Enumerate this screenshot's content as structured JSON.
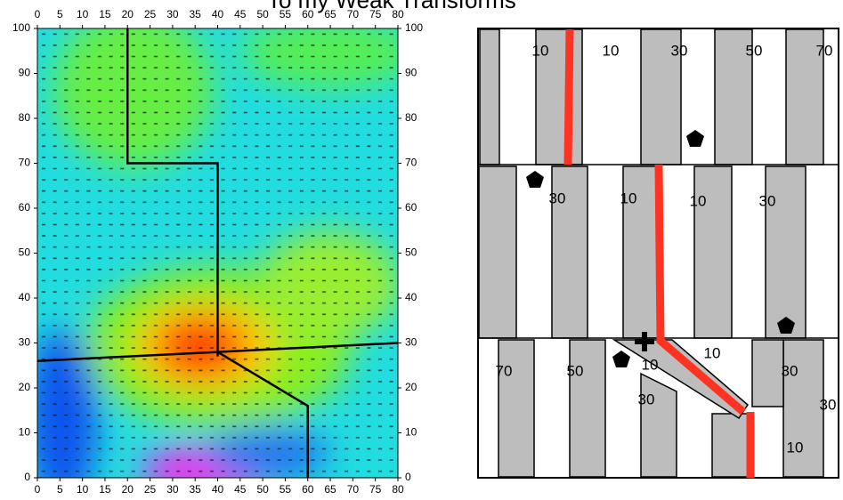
{
  "chart_data": {
    "type": "field",
    "title": "To my Weak Transforms",
    "xlim": [
      0,
      80
    ],
    "ylim": [
      0,
      100
    ],
    "xticks": [
      0,
      5,
      10,
      15,
      20,
      25,
      30,
      35,
      40,
      45,
      50,
      55,
      60,
      65,
      70,
      75,
      80
    ],
    "yticks": [
      0,
      10,
      20,
      30,
      40,
      50,
      60,
      70,
      80,
      90,
      100
    ],
    "faults": [
      [
        [
          20,
          100
        ],
        [
          20,
          70
        ],
        [
          40,
          70
        ],
        [
          40,
          27
        ]
      ],
      [
        [
          0,
          26
        ],
        [
          80,
          30
        ]
      ],
      [
        [
          40,
          28
        ],
        [
          60,
          16
        ],
        [
          60,
          0
        ]
      ]
    ]
  },
  "diagram": {
    "labels": [
      "10",
      "10",
      "30",
      "50",
      "70",
      "30",
      "10",
      "10",
      "30",
      "70",
      "50",
      "10",
      "10",
      "30",
      "30",
      "30",
      "10"
    ]
  }
}
